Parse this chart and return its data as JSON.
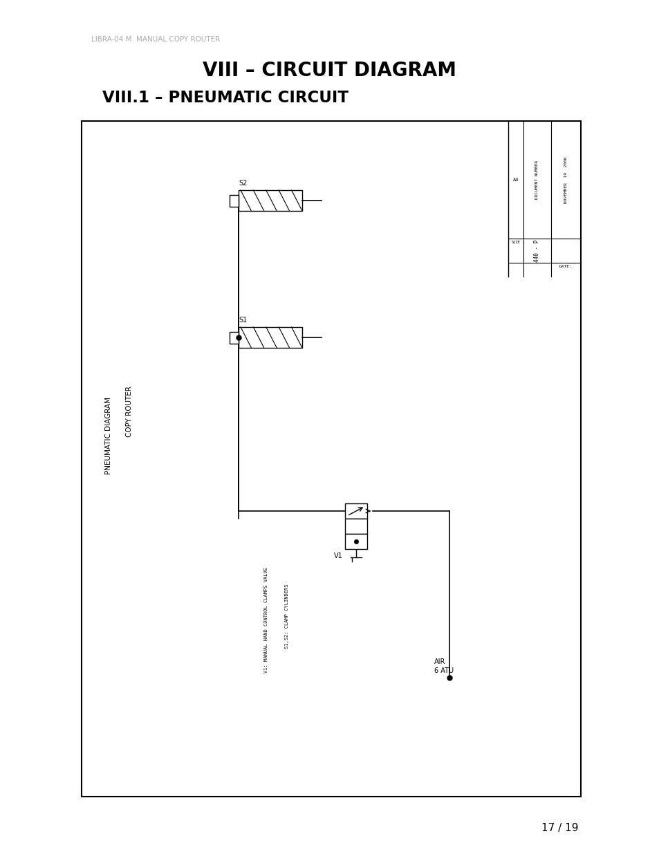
{
  "page_header": "LIBRA-04 M  MANUAL COPY ROUTER",
  "title_line1": "VIII – CIRCUIT DIAGRAM",
  "title_line2": "VIII.1 – PNEUMATIC CIRCUIT",
  "page_footer": "17 / 19",
  "diagram_label1": "PNEUMATIC DIAGRAM",
  "diagram_label2": "COPY ROUTER",
  "v1_label": "V1",
  "v1_desc1": "V1: MANUAL HAND CONTROL CLAMPS VALVE",
  "v1_desc2": "S1,S2: CLAMP CYLINDERS",
  "s1_label": "S1",
  "s2_label": "S2",
  "air_label": "AIR",
  "atu_label": "6 ATU",
  "size_label": "SIZE",
  "size_val": "A4",
  "doc_num_label": "DOCUMENT NUMBER",
  "doc_num_val": "440 - P",
  "date_label": "DATE:",
  "date_val": "NOVEMBER  19  2006",
  "bg_color": "#ffffff",
  "line_color": "#000000",
  "header_color": "#aaaaaa"
}
